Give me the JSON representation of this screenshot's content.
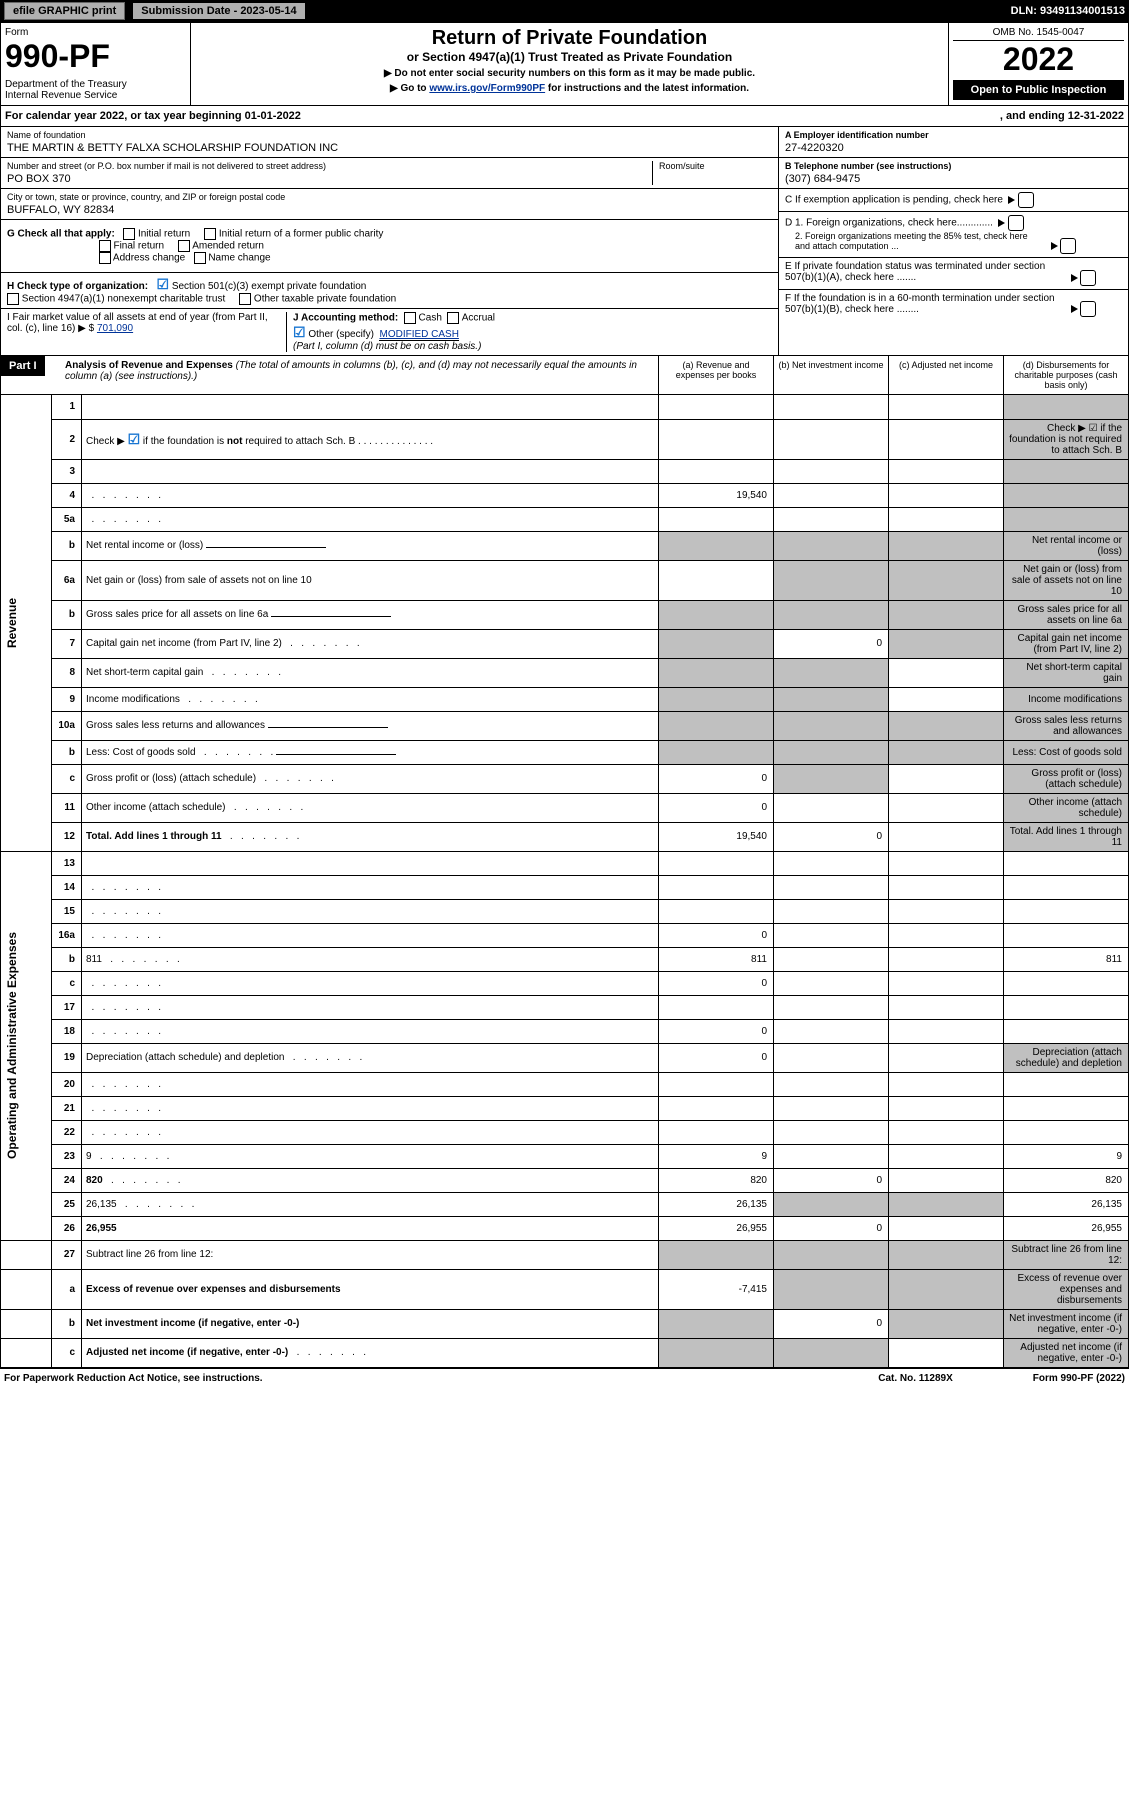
{
  "topbar": {
    "efile": "efile GRAPHIC print",
    "submission": "Submission Date - 2023-05-14",
    "dln": "DLN: 93491134001513"
  },
  "header": {
    "form_label": "Form",
    "form_num": "990-PF",
    "dept": "Department of the Treasury\nInternal Revenue Service",
    "title": "Return of Private Foundation",
    "subtitle": "or Section 4947(a)(1) Trust Treated as Private Foundation",
    "note1": "▶ Do not enter social security numbers on this form as it may be made public.",
    "note2": "▶ Go to ",
    "note2_link": "www.irs.gov/Form990PF",
    "note2_rest": " for instructions and the latest information.",
    "omb": "OMB No. 1545-0047",
    "year": "2022",
    "open": "Open to Public Inspection"
  },
  "calyear": {
    "text": "For calendar year 2022, or tax year beginning 01-01-2022",
    "end": ", and ending 12-31-2022"
  },
  "info": {
    "name_label": "Name of foundation",
    "name": "THE MARTIN & BETTY FALXA SCHOLARSHIP FOUNDATION INC",
    "addr_label": "Number and street (or P.O. box number if mail is not delivered to street address)",
    "addr": "PO BOX 370",
    "room_label": "Room/suite",
    "city_label": "City or town, state or province, country, and ZIP or foreign postal code",
    "city": "BUFFALO, WY  82834",
    "ein_label": "A Employer identification number",
    "ein": "27-4220320",
    "phone_label": "B Telephone number (see instructions)",
    "phone": "(307) 684-9475",
    "c": "C If exemption application is pending, check here",
    "d1": "D 1. Foreign organizations, check here.............",
    "d2": "2. Foreign organizations meeting the 85% test, check here and attach computation ...",
    "e": "E  If private foundation status was terminated under section 507(b)(1)(A), check here .......",
    "f": "F  If the foundation is in a 60-month termination under section 507(b)(1)(B), check here ........",
    "g_label": "G Check all that apply:",
    "g_opts": [
      "Initial return",
      "Initial return of a former public charity",
      "Final return",
      "Amended return",
      "Address change",
      "Name change"
    ],
    "h_label": "H Check type of organization:",
    "h_opt1": "Section 501(c)(3) exempt private foundation",
    "h_opt2": "Section 4947(a)(1) nonexempt charitable trust",
    "h_opt3": "Other taxable private foundation",
    "i_label": "I Fair market value of all assets at end of year (from Part II, col. (c), line 16) ▶ $",
    "i_val": "701,090",
    "j_label": "J Accounting method:",
    "j_cash": "Cash",
    "j_accrual": "Accrual",
    "j_other": "Other (specify)",
    "j_other_val": "MODIFIED CASH",
    "j_note": "(Part I, column (d) must be on cash basis.)"
  },
  "part1": {
    "label": "Part I",
    "title": "Analysis of Revenue and Expenses",
    "title_note": " (The total of amounts in columns (b), (c), and (d) may not necessarily equal the amounts in column (a) (see instructions).)",
    "col_a": "(a) Revenue and expenses per books",
    "col_b": "(b) Net investment income",
    "col_c": "(c) Adjusted net income",
    "col_d": "(d) Disbursements for charitable purposes (cash basis only)"
  },
  "sides": {
    "revenue": "Revenue",
    "expenses": "Operating and Administrative Expenses"
  },
  "rows": [
    {
      "n": "1",
      "d": "",
      "a": "",
      "b": "",
      "c": "",
      "grey_d": true
    },
    {
      "n": "2",
      "d": "Check ▶ ☑ if the foundation is not required to attach Sch. B",
      "dots": true,
      "noval": true,
      "grey_d": true
    },
    {
      "n": "3",
      "d": "",
      "a": "",
      "b": "",
      "c": "",
      "grey_d": true
    },
    {
      "n": "4",
      "d": "",
      "dots": true,
      "a": "19,540",
      "b": "",
      "c": "",
      "grey_d": true
    },
    {
      "n": "5a",
      "d": "",
      "dots": true,
      "a": "",
      "b": "",
      "c": "",
      "grey_d": true
    },
    {
      "n": "b",
      "d": "Net rental income or (loss)",
      "noval": true,
      "underline": true,
      "grey_abcd": true
    },
    {
      "n": "6a",
      "d": "Net gain or (loss) from sale of assets not on line 10",
      "a": "",
      "grey_bcd": true,
      "grey_d": true
    },
    {
      "n": "b",
      "d": "Gross sales price for all assets on line 6a",
      "noval": true,
      "underline": true,
      "grey_abcd": true
    },
    {
      "n": "7",
      "d": "Capital gain net income (from Part IV, line 2)",
      "dots": true,
      "b": "0",
      "grey_a": true,
      "grey_cd": true
    },
    {
      "n": "8",
      "d": "Net short-term capital gain",
      "dots": true,
      "c": "",
      "grey_ab": true,
      "grey_d": true
    },
    {
      "n": "9",
      "d": "Income modifications",
      "dots": true,
      "c": "",
      "grey_ab": true,
      "grey_d": true
    },
    {
      "n": "10a",
      "d": "Gross sales less returns and allowances",
      "noval": true,
      "underline": true,
      "grey_abcd": true
    },
    {
      "n": "b",
      "d": "Less: Cost of goods sold",
      "dots": true,
      "noval": true,
      "underline": true,
      "grey_abcd": true
    },
    {
      "n": "c",
      "d": "Gross profit or (loss) (attach schedule)",
      "dots": true,
      "a": "0",
      "c": "",
      "grey_b": true,
      "grey_d": true
    },
    {
      "n": "11",
      "d": "Other income (attach schedule)",
      "dots": true,
      "a": "0",
      "b": "",
      "c": "",
      "grey_d": true
    },
    {
      "n": "12",
      "d": "Total. Add lines 1 through 11",
      "dots": true,
      "bold": true,
      "a": "19,540",
      "b": "0",
      "c": "",
      "grey_d": true
    },
    {
      "n": "13",
      "d": "",
      "a": "",
      "b": "",
      "c": ""
    },
    {
      "n": "14",
      "d": "",
      "dots": true,
      "a": "",
      "b": "",
      "c": ""
    },
    {
      "n": "15",
      "d": "",
      "dots": true,
      "a": "",
      "b": "",
      "c": ""
    },
    {
      "n": "16a",
      "d": "",
      "dots": true,
      "a": "0",
      "b": "",
      "c": ""
    },
    {
      "n": "b",
      "d": "811",
      "dots": true,
      "a": "811",
      "b": "",
      "c": ""
    },
    {
      "n": "c",
      "d": "",
      "dots": true,
      "a": "0",
      "b": "",
      "c": ""
    },
    {
      "n": "17",
      "d": "",
      "dots": true,
      "a": "",
      "b": "",
      "c": ""
    },
    {
      "n": "18",
      "d": "",
      "dots": true,
      "a": "0",
      "b": "",
      "c": ""
    },
    {
      "n": "19",
      "d": "Depreciation (attach schedule) and depletion",
      "dots": true,
      "a": "0",
      "b": "",
      "c": "",
      "grey_d": true
    },
    {
      "n": "20",
      "d": "",
      "dots": true,
      "a": "",
      "b": "",
      "c": ""
    },
    {
      "n": "21",
      "d": "",
      "dots": true,
      "a": "",
      "b": "",
      "c": ""
    },
    {
      "n": "22",
      "d": "",
      "dots": true,
      "a": "",
      "b": "",
      "c": ""
    },
    {
      "n": "23",
      "d": "9",
      "dots": true,
      "a": "9",
      "b": "",
      "c": ""
    },
    {
      "n": "24",
      "d": "820",
      "dots": true,
      "bold": true,
      "a": "820",
      "b": "0",
      "c": ""
    },
    {
      "n": "25",
      "d": "26,135",
      "dots": true,
      "a": "26,135",
      "grey_bc": true
    },
    {
      "n": "26",
      "d": "26,955",
      "bold": true,
      "a": "26,955",
      "b": "0",
      "c": ""
    },
    {
      "n": "27",
      "d": "Subtract line 26 from line 12:",
      "grey_abcd": true
    },
    {
      "n": "a",
      "d": "Excess of revenue over expenses and disbursements",
      "bold": true,
      "a": "-7,415",
      "grey_bcd": true
    },
    {
      "n": "b",
      "d": "Net investment income (if negative, enter -0-)",
      "bold": true,
      "b": "0",
      "grey_a": true,
      "grey_cd": true
    },
    {
      "n": "c",
      "d": "Adjusted net income (if negative, enter -0-)",
      "dots": true,
      "bold": true,
      "c": "",
      "grey_ab": true,
      "grey_d": true
    }
  ],
  "footer": {
    "left": "For Paperwork Reduction Act Notice, see instructions.",
    "mid": "Cat. No. 11289X",
    "right": "Form 990-PF (2022)"
  }
}
